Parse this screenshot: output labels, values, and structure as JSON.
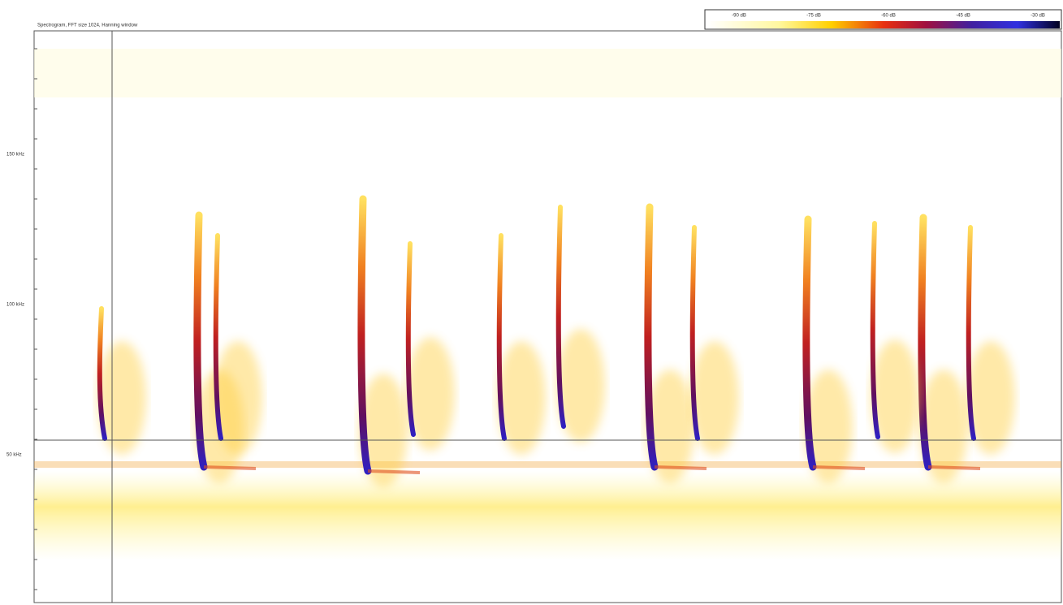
{
  "header": {
    "title": "Spectrogram, FFT size 1024, Hanning window"
  },
  "colorbar": {
    "labels": [
      "-90 dB",
      "-75 dB",
      "-60 dB",
      "-45 dB",
      "-30 dB"
    ]
  },
  "y_axis": {
    "labels": [
      "150 kHz",
      "100 kHz",
      "50 kHz"
    ]
  }
}
